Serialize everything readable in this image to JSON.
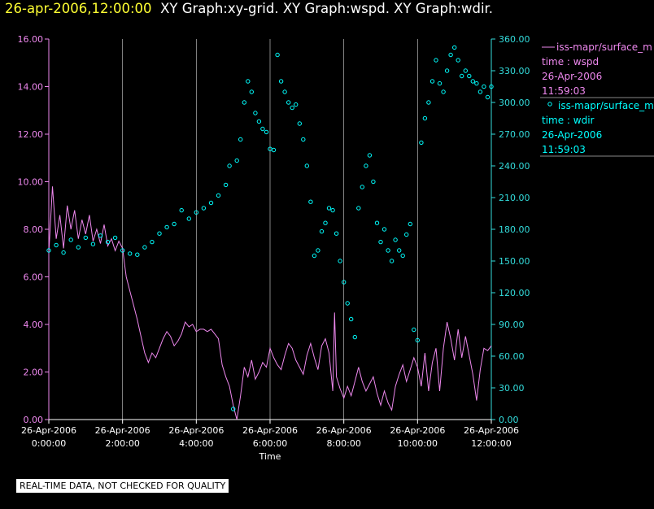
{
  "title": {
    "timestamp": "26-apr-2006,12:00:00",
    "graphs": "XY Graph:xy-grid.  XY Graph:wspd.  XY Graph:wdir."
  },
  "colors": {
    "wspd": "#ee88ee",
    "wdir": "#00ffff",
    "axis_left": "#ee88ee",
    "axis_right": "#33dddd",
    "grid": "#bbbbbb",
    "text": "#ffffff"
  },
  "legend": [
    {
      "marker": "line",
      "label": "iss-mapr/surface_m",
      "var": "time : wspd",
      "date": "26-Apr-2006",
      "time": "11:59:03"
    },
    {
      "marker": "circle",
      "label": "iss-mapr/surface_m",
      "var": "time : wdir",
      "date": "26-Apr-2006",
      "time": "11:59:03"
    }
  ],
  "disclaimer": "REAL-TIME DATA, NOT CHECKED FOR QUALITY",
  "chart_data": {
    "type": "line",
    "title": "",
    "xlabel": "Time",
    "ylabel": "",
    "xlim": [
      "26-Apr-2006 0:00:00",
      "26-Apr-2006 12:00:00"
    ],
    "x_ticks": [
      {
        "date": "26-Apr-2006",
        "time": "0:00:00"
      },
      {
        "date": "26-Apr-2006",
        "time": "2:00:00"
      },
      {
        "date": "26-Apr-2006",
        "time": "4:00:00"
      },
      {
        "date": "26-Apr-2006",
        "time": "6:00:00"
      },
      {
        "date": "26-Apr-2006",
        "time": "8:00:00"
      },
      {
        "date": "26-Apr-2006",
        "time": "10:00:00"
      },
      {
        "date": "26-Apr-2006",
        "time": "12:00:00"
      }
    ],
    "ylim_left": [
      0,
      16
    ],
    "y_ticks_left": [
      "0.00",
      "2.00",
      "4.00",
      "6.00",
      "8.00",
      "10.00",
      "12.00",
      "14.00",
      "16.00"
    ],
    "ylim_right": [
      0,
      360
    ],
    "y_ticks_right": [
      "0.00",
      "30.00",
      "60.00",
      "90.00",
      "120.00",
      "150.00",
      "180.00",
      "210.00",
      "240.00",
      "270.00",
      "300.00",
      "330.00",
      "360.00"
    ],
    "grid": "vertical",
    "series": [
      {
        "axis": "left",
        "style": "line",
        "x_hours": [
          0,
          0.1,
          0.2,
          0.3,
          0.4,
          0.5,
          0.6,
          0.7,
          0.8,
          0.9,
          1.0,
          1.1,
          1.2,
          1.3,
          1.4,
          1.5,
          1.6,
          1.7,
          1.8,
          1.9,
          2.0,
          2.05,
          2.1,
          2.2,
          2.3,
          2.4,
          2.5,
          2.6,
          2.7,
          2.8,
          2.9,
          3.0,
          3.1,
          3.2,
          3.3,
          3.4,
          3.5,
          3.6,
          3.7,
          3.8,
          3.9,
          4.0,
          4.1,
          4.2,
          4.3,
          4.4,
          4.5,
          4.6,
          4.7,
          4.8,
          4.9,
          5.0,
          5.1,
          5.2,
          5.3,
          5.4,
          5.5,
          5.6,
          5.7,
          5.8,
          5.9,
          6.0,
          6.1,
          6.2,
          6.3,
          6.4,
          6.5,
          6.6,
          6.7,
          6.8,
          6.9,
          7.0,
          7.1,
          7.2,
          7.3,
          7.4,
          7.5,
          7.6,
          7.7,
          7.75,
          7.8,
          7.9,
          8.0,
          8.1,
          8.2,
          8.3,
          8.4,
          8.5,
          8.6,
          8.7,
          8.8,
          8.9,
          9.0,
          9.1,
          9.2,
          9.3,
          9.4,
          9.5,
          9.6,
          9.7,
          9.8,
          9.9,
          10.0,
          10.1,
          10.2,
          10.3,
          10.4,
          10.5,
          10.6,
          10.7,
          10.8,
          10.9,
          11.0,
          11.1,
          11.2,
          11.3,
          11.4,
          11.5,
          11.6,
          11.7,
          11.8,
          11.9,
          12.0
        ],
        "values": [
          7.0,
          9.8,
          7.6,
          8.6,
          7.2,
          9.0,
          8.0,
          8.8,
          7.6,
          8.4,
          7.8,
          8.6,
          7.5,
          8.0,
          7.4,
          8.2,
          7.3,
          7.6,
          7.1,
          7.5,
          7.2,
          6.6,
          6.0,
          5.4,
          4.8,
          4.2,
          3.5,
          2.8,
          2.4,
          2.8,
          2.6,
          3.0,
          3.4,
          3.7,
          3.5,
          3.1,
          3.3,
          3.6,
          4.1,
          3.9,
          4.0,
          3.7,
          3.8,
          3.8,
          3.7,
          3.8,
          3.6,
          3.4,
          2.3,
          1.8,
          1.4,
          0.6,
          0.0,
          1.0,
          2.2,
          1.8,
          2.5,
          1.7,
          2.0,
          2.4,
          2.2,
          3.0,
          2.6,
          2.3,
          2.1,
          2.7,
          3.2,
          3.0,
          2.5,
          2.2,
          1.9,
          2.7,
          3.2,
          2.6,
          2.1,
          3.1,
          3.4,
          2.8,
          1.2,
          4.5,
          1.8,
          1.3,
          0.9,
          1.4,
          1.0,
          1.6,
          2.2,
          1.6,
          1.2,
          1.5,
          1.8,
          1.1,
          0.6,
          1.2,
          0.7,
          0.4,
          1.4,
          1.9,
          2.3,
          1.6,
          2.1,
          2.6,
          2.2,
          1.4,
          2.8,
          1.2,
          2.4,
          3.0,
          1.2,
          3.0,
          4.1,
          3.4,
          2.5,
          3.8,
          2.6,
          3.5,
          2.7,
          1.9,
          0.8,
          2.1,
          3.0,
          2.9,
          3.1
        ]
      },
      {
        "axis": "right",
        "style": "markers",
        "x_hours": [
          0,
          0.2,
          0.4,
          0.6,
          0.8,
          1.0,
          1.2,
          1.4,
          1.6,
          1.8,
          2.0,
          2.2,
          2.4,
          2.6,
          2.8,
          3.0,
          3.2,
          3.4,
          3.6,
          3.8,
          4.0,
          4.2,
          4.4,
          4.6,
          4.8,
          4.9,
          5.0,
          5.1,
          5.2,
          5.3,
          5.4,
          5.5,
          5.6,
          5.7,
          5.8,
          5.9,
          6.0,
          6.1,
          6.2,
          6.3,
          6.4,
          6.5,
          6.6,
          6.7,
          6.8,
          6.9,
          7.0,
          7.1,
          7.2,
          7.3,
          7.4,
          7.5,
          7.6,
          7.7,
          7.8,
          7.9,
          8.0,
          8.1,
          8.2,
          8.3,
          8.4,
          8.5,
          8.6,
          8.7,
          8.8,
          8.9,
          9.0,
          9.1,
          9.2,
          9.3,
          9.4,
          9.5,
          9.6,
          9.7,
          9.8,
          9.9,
          10.0,
          10.1,
          10.2,
          10.3,
          10.4,
          10.5,
          10.6,
          10.7,
          10.8,
          10.9,
          11.0,
          11.1,
          11.2,
          11.3,
          11.4,
          11.5,
          11.6,
          11.7,
          11.8,
          11.9,
          12.0
        ],
        "values": [
          160,
          165,
          158,
          170,
          163,
          172,
          166,
          174,
          168,
          172,
          160,
          157,
          156,
          163,
          168,
          176,
          182,
          185,
          198,
          190,
          196,
          200,
          205,
          212,
          222,
          240,
          10,
          245,
          265,
          300,
          320,
          310,
          290,
          282,
          275,
          272,
          256,
          255,
          345,
          320,
          310,
          300,
          295,
          298,
          280,
          265,
          240,
          206,
          155,
          160,
          178,
          186,
          200,
          198,
          176,
          150,
          130,
          110,
          95,
          78,
          200,
          220,
          240,
          250,
          225,
          186,
          168,
          180,
          160,
          150,
          170,
          160,
          155,
          175,
          185,
          85,
          75,
          262,
          285,
          300,
          320,
          340,
          318,
          310,
          330,
          345,
          352,
          340,
          325,
          330,
          325,
          320,
          318,
          310,
          315,
          305,
          315
        ]
      }
    ]
  }
}
